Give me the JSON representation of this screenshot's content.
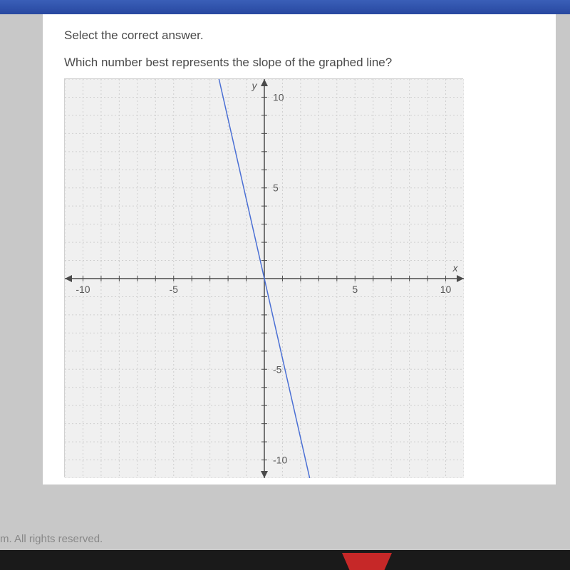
{
  "instruction": "Select the correct answer.",
  "question": "Which number best represents the slope of the graphed line?",
  "footer": "m. All rights reserved.",
  "chart": {
    "type": "line",
    "background_color": "#f0f0f0",
    "grid_color": "#cfcfcf",
    "axis_color": "#4a4a4a",
    "line_color": "#4a6fd4",
    "text_color": "#585858",
    "xlim": [
      -11,
      11
    ],
    "ylim": [
      -11,
      11
    ],
    "xtick_step": 1,
    "ytick_step": 1,
    "label_step": 5,
    "x_axis_label": "x",
    "y_axis_label": "y",
    "tick_labels_x": {
      "-10": "-10",
      "-5": "-5",
      "5": "5",
      "10": "10"
    },
    "tick_labels_y": {
      "-10": "-10",
      "-5": "-5",
      "5": "5",
      "10": "10"
    },
    "line_points": [
      [
        -2.5,
        11
      ],
      [
        2.5,
        -11
      ]
    ],
    "slope_estimate": -4,
    "label_fontsize": 14,
    "axis_width": 1.5,
    "grid_width": 1,
    "line_width": 1.5
  }
}
